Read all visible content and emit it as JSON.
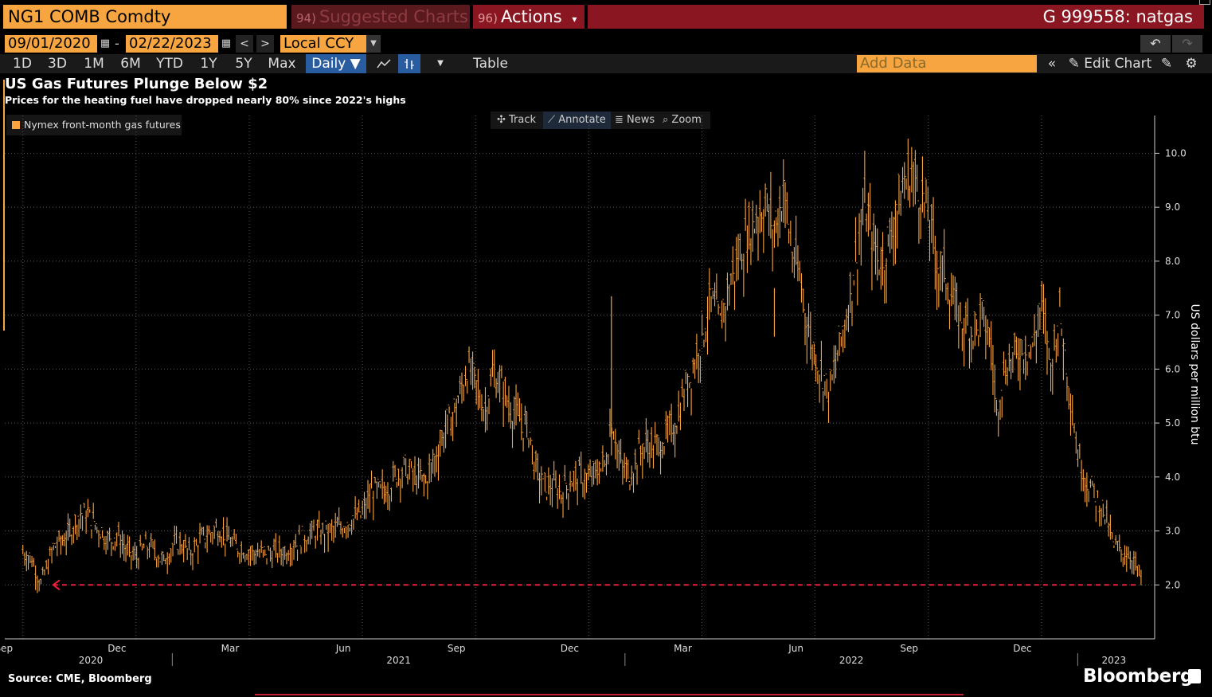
{
  "header": {
    "ticker": "NG1 COMB Comdty",
    "suggested_num": "94)",
    "suggested_label": "Suggested Charts",
    "actions_num": "96)",
    "actions_label": "Actions",
    "actions_caret": "▾",
    "chart_id": "G 999558: natgas"
  },
  "controls": {
    "start_date": "09/01/2020",
    "dash": "-",
    "end_date": "02/22/2023",
    "currency": "Local CCY",
    "periods": [
      "1D",
      "3D",
      "1M",
      "6M",
      "YTD",
      "1Y",
      "5Y",
      "Max"
    ],
    "frequency": "Daily ▼",
    "table_label": "Table",
    "add_data_placeholder": "Add Data",
    "edit_chart_label": "Edit Chart"
  },
  "tools": {
    "track": "Track",
    "annotate": "Annotate",
    "news": "News",
    "zoom": "Zoom"
  },
  "footer": {
    "source": "Source: CME, Bloomberg",
    "brand": "Bloomberg"
  },
  "colors": {
    "series": "#f7a541",
    "annotation": "#e8203a",
    "accent_red": "#8a1621",
    "orange": "#f7a541"
  },
  "chart_data": {
    "type": "line",
    "title": "US Gas Futures Plunge Below $2",
    "subtitle": "Prices for the heating fuel have dropped nearly 80% since 2022's highs",
    "ylabel": "US dollars per million btu",
    "ylim": [
      1.0,
      10.7
    ],
    "yticks": [
      2.0,
      3.0,
      4.0,
      5.0,
      6.0,
      7.0,
      8.0,
      9.0,
      10.0
    ],
    "legend": [
      "Nymex front-month gas futures"
    ],
    "x_months": [
      "Sep",
      "Dec",
      "Mar",
      "Jun",
      "Sep",
      "Dec",
      "Mar",
      "Jun",
      "Sep",
      "Dec"
    ],
    "x_years": [
      "2020",
      "2021",
      "2022",
      "2023"
    ],
    "x_range": [
      2020.63,
      2023.17
    ],
    "series": [
      {
        "name": "Nymex front-month gas futures",
        "points": [
          [
            2020.67,
            2.6
          ],
          [
            2020.69,
            2.45
          ],
          [
            2020.71,
            2.0
          ],
          [
            2020.72,
            2.25
          ],
          [
            2020.74,
            2.7
          ],
          [
            2020.77,
            2.9
          ],
          [
            2020.79,
            3.2
          ],
          [
            2020.81,
            3.3
          ],
          [
            2020.84,
            3.0
          ],
          [
            2020.86,
            2.8
          ],
          [
            2020.88,
            2.9
          ],
          [
            2020.9,
            2.6
          ],
          [
            2020.92,
            2.5
          ],
          [
            2020.94,
            2.7
          ],
          [
            2020.96,
            2.65
          ],
          [
            2020.98,
            2.4
          ],
          [
            2021.0,
            2.7
          ],
          [
            2021.02,
            2.75
          ],
          [
            2021.04,
            2.55
          ],
          [
            2021.06,
            2.8
          ],
          [
            2021.08,
            2.9
          ],
          [
            2021.1,
            3.05
          ],
          [
            2021.12,
            2.85
          ],
          [
            2021.14,
            2.7
          ],
          [
            2021.17,
            2.6
          ],
          [
            2021.2,
            2.55
          ],
          [
            2021.23,
            2.6
          ],
          [
            2021.25,
            2.6
          ],
          [
            2021.28,
            2.8
          ],
          [
            2021.31,
            2.95
          ],
          [
            2021.34,
            2.95
          ],
          [
            2021.36,
            3.0
          ],
          [
            2021.38,
            3.1
          ],
          [
            2021.4,
            3.2
          ],
          [
            2021.42,
            3.3
          ],
          [
            2021.44,
            3.7
          ],
          [
            2021.46,
            3.7
          ],
          [
            2021.48,
            3.8
          ],
          [
            2021.5,
            4.1
          ],
          [
            2021.52,
            4.1
          ],
          [
            2021.54,
            3.95
          ],
          [
            2021.56,
            3.9
          ],
          [
            2021.58,
            4.3
          ],
          [
            2021.6,
            4.8
          ],
          [
            2021.62,
            5.1
          ],
          [
            2021.64,
            5.6
          ],
          [
            2021.65,
            6.0
          ],
          [
            2021.67,
            5.7
          ],
          [
            2021.69,
            5.2
          ],
          [
            2021.71,
            5.9
          ],
          [
            2021.73,
            5.6
          ],
          [
            2021.75,
            5.2
          ],
          [
            2021.77,
            5.0
          ],
          [
            2021.79,
            4.8
          ],
          [
            2021.8,
            4.2
          ],
          [
            2021.82,
            3.8
          ],
          [
            2021.84,
            3.8
          ],
          [
            2021.86,
            3.7
          ],
          [
            2021.88,
            3.9
          ],
          [
            2021.9,
            4.0
          ],
          [
            2021.92,
            3.9
          ],
          [
            2021.94,
            4.1
          ],
          [
            2021.96,
            4.3
          ],
          [
            2021.97,
            5.1
          ],
          [
            2021.99,
            4.2
          ],
          [
            2022.01,
            4.0
          ],
          [
            2022.03,
            4.4
          ],
          [
            2022.05,
            4.6
          ],
          [
            2022.07,
            4.5
          ],
          [
            2022.09,
            4.7
          ],
          [
            2022.11,
            4.9
          ],
          [
            2022.13,
            5.5
          ],
          [
            2022.15,
            6.0
          ],
          [
            2022.17,
            6.6
          ],
          [
            2022.19,
            7.2
          ],
          [
            2022.21,
            6.8
          ],
          [
            2022.23,
            7.5
          ],
          [
            2022.25,
            8.0
          ],
          [
            2022.27,
            8.4
          ],
          [
            2022.29,
            8.8
          ],
          [
            2022.31,
            9.0
          ],
          [
            2022.33,
            8.5
          ],
          [
            2022.35,
            9.3
          ],
          [
            2022.37,
            8.1
          ],
          [
            2022.39,
            7.5
          ],
          [
            2022.41,
            6.5
          ],
          [
            2022.43,
            6.0
          ],
          [
            2022.45,
            5.5
          ],
          [
            2022.47,
            6.2
          ],
          [
            2022.49,
            7.0
          ],
          [
            2022.51,
            8.0
          ],
          [
            2022.53,
            9.0
          ],
          [
            2022.55,
            8.2
          ],
          [
            2022.57,
            7.9
          ],
          [
            2022.59,
            8.5
          ],
          [
            2022.61,
            9.2
          ],
          [
            2022.63,
            9.6
          ],
          [
            2022.65,
            9.3
          ],
          [
            2022.67,
            8.8
          ],
          [
            2022.69,
            7.9
          ],
          [
            2022.71,
            7.7
          ],
          [
            2022.73,
            7.0
          ],
          [
            2022.75,
            6.8
          ],
          [
            2022.77,
            6.7
          ],
          [
            2022.79,
            6.9
          ],
          [
            2022.81,
            6.4
          ],
          [
            2022.82,
            5.2
          ],
          [
            2022.84,
            6.0
          ],
          [
            2022.86,
            6.2
          ],
          [
            2022.88,
            6.4
          ],
          [
            2022.9,
            6.3
          ],
          [
            2022.92,
            7.2
          ],
          [
            2022.94,
            6.0
          ],
          [
            2022.96,
            7.0
          ],
          [
            2022.98,
            5.8
          ],
          [
            2023.0,
            4.4
          ],
          [
            2023.02,
            3.9
          ],
          [
            2023.04,
            3.6
          ],
          [
            2023.06,
            3.3
          ],
          [
            2023.08,
            2.7
          ],
          [
            2023.1,
            2.6
          ],
          [
            2023.12,
            2.5
          ],
          [
            2023.14,
            2.1
          ]
        ]
      }
    ],
    "annotation": {
      "type": "dashed-arrow",
      "value": 2.0
    }
  }
}
